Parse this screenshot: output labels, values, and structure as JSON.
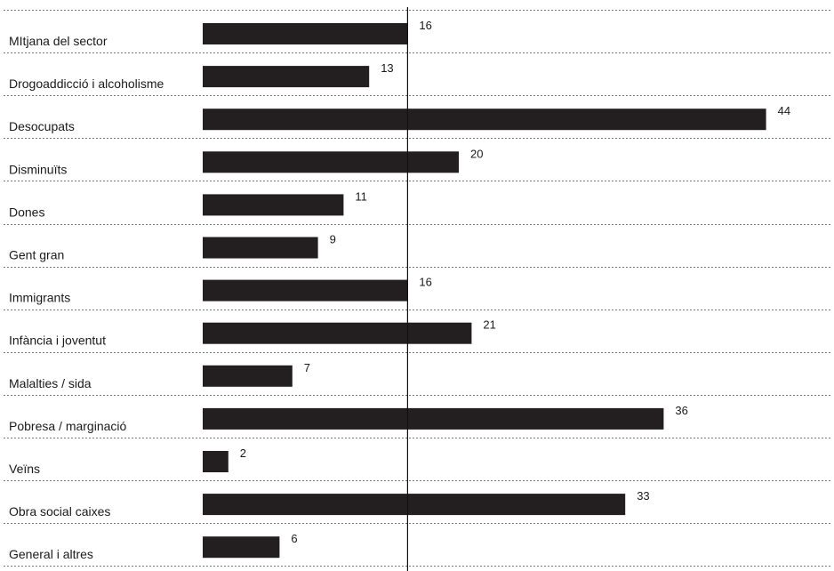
{
  "chart_data": {
    "type": "bar",
    "orientation": "horizontal",
    "categories": [
      "MItjana del sector",
      "Drogoaddicció i alcoholisme",
      "Desocupats",
      "Disminuïts",
      "Dones",
      "Gent gran",
      "Immigrants",
      "Infància i joventut",
      "Malalties / sida",
      "Pobresa / marginació",
      "Veïns",
      "Obra social caixes",
      "General i altres"
    ],
    "values": [
      16,
      13,
      44,
      20,
      11,
      9,
      16,
      21,
      7,
      36,
      2,
      33,
      6
    ],
    "reference_line": 16,
    "xlim": [
      0,
      44
    ],
    "bar_color": "#231f20",
    "grid": false,
    "legend": "none"
  }
}
